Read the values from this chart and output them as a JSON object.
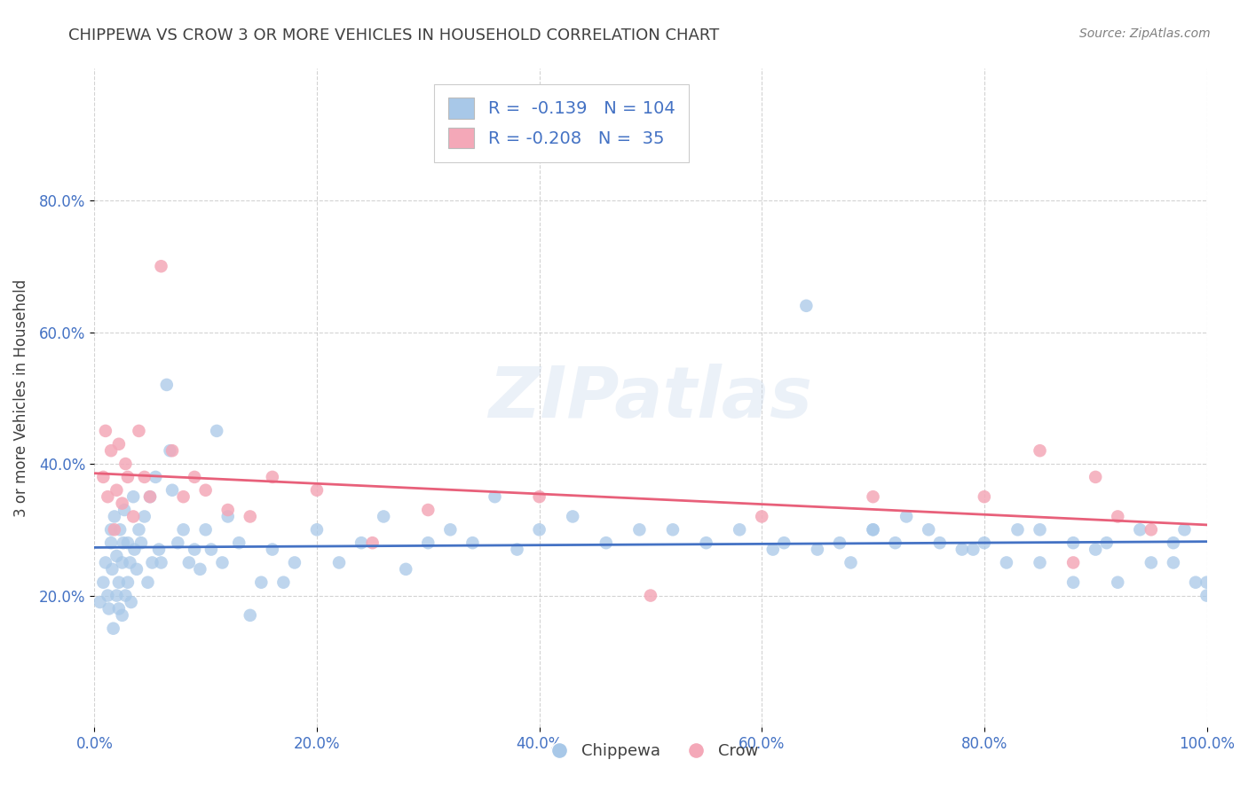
{
  "title": "CHIPPEWA VS CROW 3 OR MORE VEHICLES IN HOUSEHOLD CORRELATION CHART",
  "source_text": "Source: ZipAtlas.com",
  "ylabel": "3 or more Vehicles in Household",
  "xlim": [
    0.0,
    1.0
  ],
  "ylim": [
    0.0,
    1.0
  ],
  "xticks": [
    0.0,
    0.2,
    0.4,
    0.6,
    0.8,
    1.0
  ],
  "xtick_labels": [
    "0.0%",
    "20.0%",
    "40.0%",
    "60.0%",
    "80.0%",
    "100.0%"
  ],
  "yticks": [
    0.2,
    0.4,
    0.6,
    0.8
  ],
  "ytick_labels": [
    "20.0%",
    "40.0%",
    "60.0%",
    "80.0%"
  ],
  "watermark": "ZIPatlas",
  "legend_R_blue": "-0.139",
  "legend_N_blue": "104",
  "legend_R_pink": "-0.208",
  "legend_N_pink": "35",
  "blue_color": "#a8c8e8",
  "pink_color": "#f4a8b8",
  "blue_line_color": "#4472c4",
  "pink_line_color": "#e8607a",
  "title_color": "#404040",
  "source_color": "#808080",
  "tick_color": "#4472c4",
  "chippewa_x": [
    0.005,
    0.008,
    0.01,
    0.012,
    0.013,
    0.015,
    0.015,
    0.016,
    0.017,
    0.018,
    0.02,
    0.02,
    0.022,
    0.022,
    0.023,
    0.025,
    0.025,
    0.026,
    0.027,
    0.028,
    0.03,
    0.03,
    0.032,
    0.033,
    0.035,
    0.036,
    0.038,
    0.04,
    0.042,
    0.045,
    0.048,
    0.05,
    0.052,
    0.055,
    0.058,
    0.06,
    0.065,
    0.068,
    0.07,
    0.075,
    0.08,
    0.085,
    0.09,
    0.095,
    0.1,
    0.105,
    0.11,
    0.115,
    0.12,
    0.13,
    0.14,
    0.15,
    0.16,
    0.17,
    0.18,
    0.2,
    0.22,
    0.24,
    0.26,
    0.28,
    0.3,
    0.32,
    0.34,
    0.36,
    0.38,
    0.4,
    0.43,
    0.46,
    0.49,
    0.52,
    0.55,
    0.58,
    0.61,
    0.64,
    0.67,
    0.7,
    0.73,
    0.76,
    0.79,
    0.82,
    0.85,
    0.88,
    0.91,
    0.94,
    0.97,
    1.0,
    0.62,
    0.65,
    0.68,
    0.7,
    0.72,
    0.75,
    0.78,
    0.8,
    0.83,
    0.85,
    0.88,
    0.9,
    0.92,
    0.95,
    0.97,
    0.98,
    0.99,
    1.0
  ],
  "chippewa_y": [
    0.19,
    0.22,
    0.25,
    0.2,
    0.18,
    0.28,
    0.3,
    0.24,
    0.15,
    0.32,
    0.2,
    0.26,
    0.18,
    0.22,
    0.3,
    0.17,
    0.25,
    0.28,
    0.33,
    0.2,
    0.22,
    0.28,
    0.25,
    0.19,
    0.35,
    0.27,
    0.24,
    0.3,
    0.28,
    0.32,
    0.22,
    0.35,
    0.25,
    0.38,
    0.27,
    0.25,
    0.52,
    0.42,
    0.36,
    0.28,
    0.3,
    0.25,
    0.27,
    0.24,
    0.3,
    0.27,
    0.45,
    0.25,
    0.32,
    0.28,
    0.17,
    0.22,
    0.27,
    0.22,
    0.25,
    0.3,
    0.25,
    0.28,
    0.32,
    0.24,
    0.28,
    0.3,
    0.28,
    0.35,
    0.27,
    0.3,
    0.32,
    0.28,
    0.3,
    0.3,
    0.28,
    0.3,
    0.27,
    0.64,
    0.28,
    0.3,
    0.32,
    0.28,
    0.27,
    0.25,
    0.3,
    0.22,
    0.28,
    0.3,
    0.25,
    0.22,
    0.28,
    0.27,
    0.25,
    0.3,
    0.28,
    0.3,
    0.27,
    0.28,
    0.3,
    0.25,
    0.28,
    0.27,
    0.22,
    0.25,
    0.28,
    0.3,
    0.22,
    0.2
  ],
  "crow_x": [
    0.008,
    0.01,
    0.012,
    0.015,
    0.018,
    0.02,
    0.022,
    0.025,
    0.028,
    0.03,
    0.035,
    0.04,
    0.045,
    0.05,
    0.06,
    0.07,
    0.08,
    0.09,
    0.1,
    0.12,
    0.14,
    0.16,
    0.2,
    0.25,
    0.3,
    0.4,
    0.5,
    0.6,
    0.7,
    0.8,
    0.85,
    0.88,
    0.9,
    0.92,
    0.95
  ],
  "crow_y": [
    0.38,
    0.45,
    0.35,
    0.42,
    0.3,
    0.36,
    0.43,
    0.34,
    0.4,
    0.38,
    0.32,
    0.45,
    0.38,
    0.35,
    0.7,
    0.42,
    0.35,
    0.38,
    0.36,
    0.33,
    0.32,
    0.38,
    0.36,
    0.28,
    0.33,
    0.35,
    0.2,
    0.32,
    0.35,
    0.35,
    0.42,
    0.25,
    0.38,
    0.32,
    0.3
  ]
}
